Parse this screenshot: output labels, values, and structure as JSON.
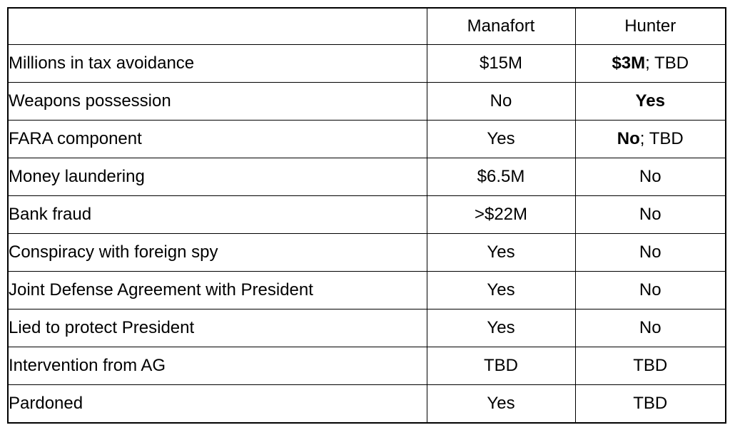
{
  "page": {
    "background": "#ffffff",
    "border_color": "#000000",
    "text_color": "#000000"
  },
  "table": {
    "header": {
      "col1": "",
      "col2": "Manafort",
      "col3": "Hunter"
    },
    "rows": [
      {
        "label": "Millions in tax avoidance",
        "manafort": "$15M",
        "hunter_bold": "$3M",
        "hunter_rest": "; TBD"
      },
      {
        "label": "Weapons possession",
        "manafort": "No",
        "hunter_bold": "Yes",
        "hunter_rest": ""
      },
      {
        "label": "FARA component",
        "manafort": "Yes",
        "hunter_bold": "No",
        "hunter_rest": "; TBD"
      },
      {
        "label": "Money laundering",
        "manafort": "$6.5M",
        "hunter_bold": "",
        "hunter_rest": "No"
      },
      {
        "label": "Bank fraud",
        "manafort": ">$22M",
        "hunter_bold": "",
        "hunter_rest": "No"
      },
      {
        "label": "Conspiracy with foreign spy",
        "manafort": "Yes",
        "hunter_bold": "",
        "hunter_rest": "No"
      },
      {
        "label": "Joint Defense Agreement with President",
        "manafort": "Yes",
        "hunter_bold": "",
        "hunter_rest": "No"
      },
      {
        "label": "Lied to protect President",
        "manafort": "Yes",
        "hunter_bold": "",
        "hunter_rest": "No"
      },
      {
        "label": "Intervention from AG",
        "manafort": "TBD",
        "hunter_bold": "",
        "hunter_rest": "TBD"
      },
      {
        "label": "Pardoned",
        "manafort": "Yes",
        "hunter_bold": "",
        "hunter_rest": "TBD"
      }
    ]
  }
}
